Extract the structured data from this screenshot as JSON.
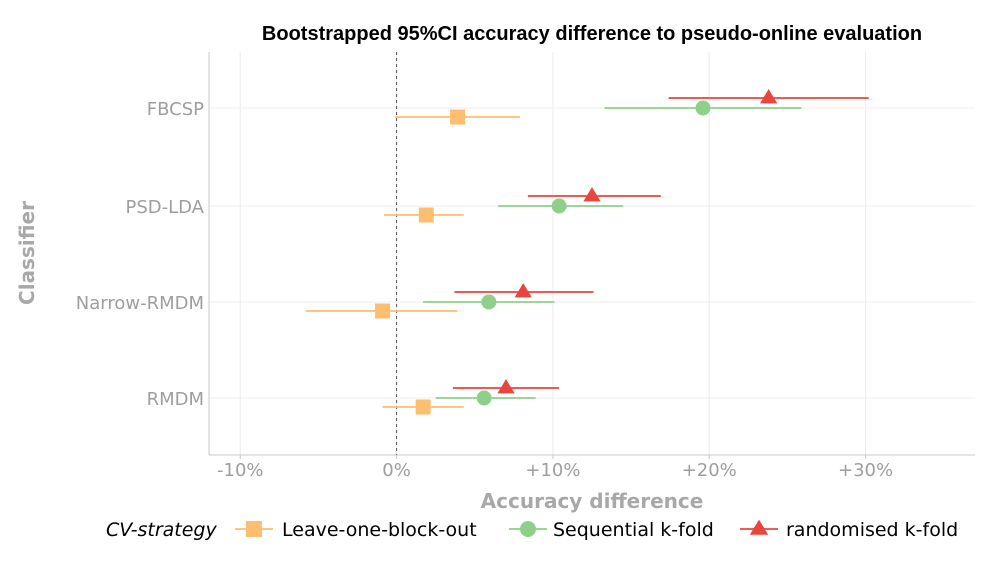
{
  "chart_data": {
    "type": "scatter",
    "title": "Bootstrapped 95%CI accuracy difference to pseudo-online evaluation",
    "xlabel": "Accuracy difference",
    "ylabel": "Classifier",
    "xlim": [
      -12,
      37
    ],
    "x_ticks": [
      -10,
      0,
      10,
      20,
      30
    ],
    "x_tick_labels": [
      "-10%",
      "0%",
      "+10%",
      "+20%",
      "+30%"
    ],
    "categories": [
      "FBCSP",
      "PSD-LDA",
      "Narrow-RMDM",
      "RMDM"
    ],
    "reference_line": 0,
    "grid": true,
    "legend": {
      "title": "CV-strategy",
      "position": "bottom"
    },
    "series": [
      {
        "name": "Leave-one-block-out",
        "color": "#fdbf6f",
        "marker": "square",
        "points": [
          {
            "category": "FBCSP",
            "x": 3.9,
            "lo": -0.1,
            "hi": 7.9
          },
          {
            "category": "PSD-LDA",
            "x": 1.9,
            "lo": -0.8,
            "hi": 4.3
          },
          {
            "category": "Narrow-RMDM",
            "x": -0.9,
            "lo": -5.8,
            "hi": 3.9
          },
          {
            "category": "RMDM",
            "x": 1.7,
            "lo": -0.9,
            "hi": 4.3
          }
        ]
      },
      {
        "name": "Sequential k-fold",
        "color": "#8ecf8a",
        "marker": "circle",
        "points": [
          {
            "category": "FBCSP",
            "x": 19.6,
            "lo": 13.3,
            "hi": 25.9
          },
          {
            "category": "PSD-LDA",
            "x": 10.4,
            "lo": 6.5,
            "hi": 14.5
          },
          {
            "category": "Narrow-RMDM",
            "x": 5.9,
            "lo": 1.7,
            "hi": 10.1
          },
          {
            "category": "RMDM",
            "x": 5.6,
            "lo": 2.5,
            "hi": 8.9
          }
        ]
      },
      {
        "name": "randomised k-fold",
        "color": "#e8463c",
        "marker": "triangle",
        "points": [
          {
            "category": "FBCSP",
            "x": 23.8,
            "lo": 17.4,
            "hi": 30.2
          },
          {
            "category": "PSD-LDA",
            "x": 12.5,
            "lo": 8.4,
            "hi": 16.9
          },
          {
            "category": "Narrow-RMDM",
            "x": 8.1,
            "lo": 3.7,
            "hi": 12.6
          },
          {
            "category": "RMDM",
            "x": 7.0,
            "lo": 3.6,
            "hi": 10.4
          }
        ]
      }
    ]
  }
}
